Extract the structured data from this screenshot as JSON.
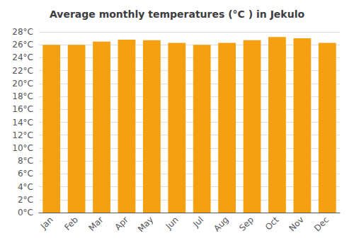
{
  "chart_data": {
    "type": "bar",
    "title": "Average monthly temperatures (°C ) in Jekulo",
    "categories": [
      "Jan",
      "Feb",
      "Mar",
      "Apr",
      "May",
      "Jun",
      "Jul",
      "Aug",
      "Sep",
      "Oct",
      "Nov",
      "Dec"
    ],
    "values": [
      26.0,
      26.0,
      26.5,
      26.8,
      26.7,
      26.3,
      26.0,
      26.3,
      26.7,
      27.2,
      27.0,
      26.3
    ],
    "color": "#F5A010",
    "ylim": [
      0,
      28
    ],
    "yticks": [
      {
        "value": 0,
        "label": "0°C"
      },
      {
        "value": 2,
        "label": "2°C"
      },
      {
        "value": 4,
        "label": "4°C"
      },
      {
        "value": 6,
        "label": "6°C"
      },
      {
        "value": 8,
        "label": "8°C"
      },
      {
        "value": 10,
        "label": "10°C"
      },
      {
        "value": 12,
        "label": "12°C"
      },
      {
        "value": 14,
        "label": "14°C"
      },
      {
        "value": 16,
        "label": "16°C"
      },
      {
        "value": 18,
        "label": "18°C"
      },
      {
        "value": 20,
        "label": "20°C"
      },
      {
        "value": 22,
        "label": "22°C"
      },
      {
        "value": 24,
        "label": "24°C"
      },
      {
        "value": 26,
        "label": "26°C"
      },
      {
        "value": 28,
        "label": "28°C"
      }
    ],
    "grid": true
  }
}
